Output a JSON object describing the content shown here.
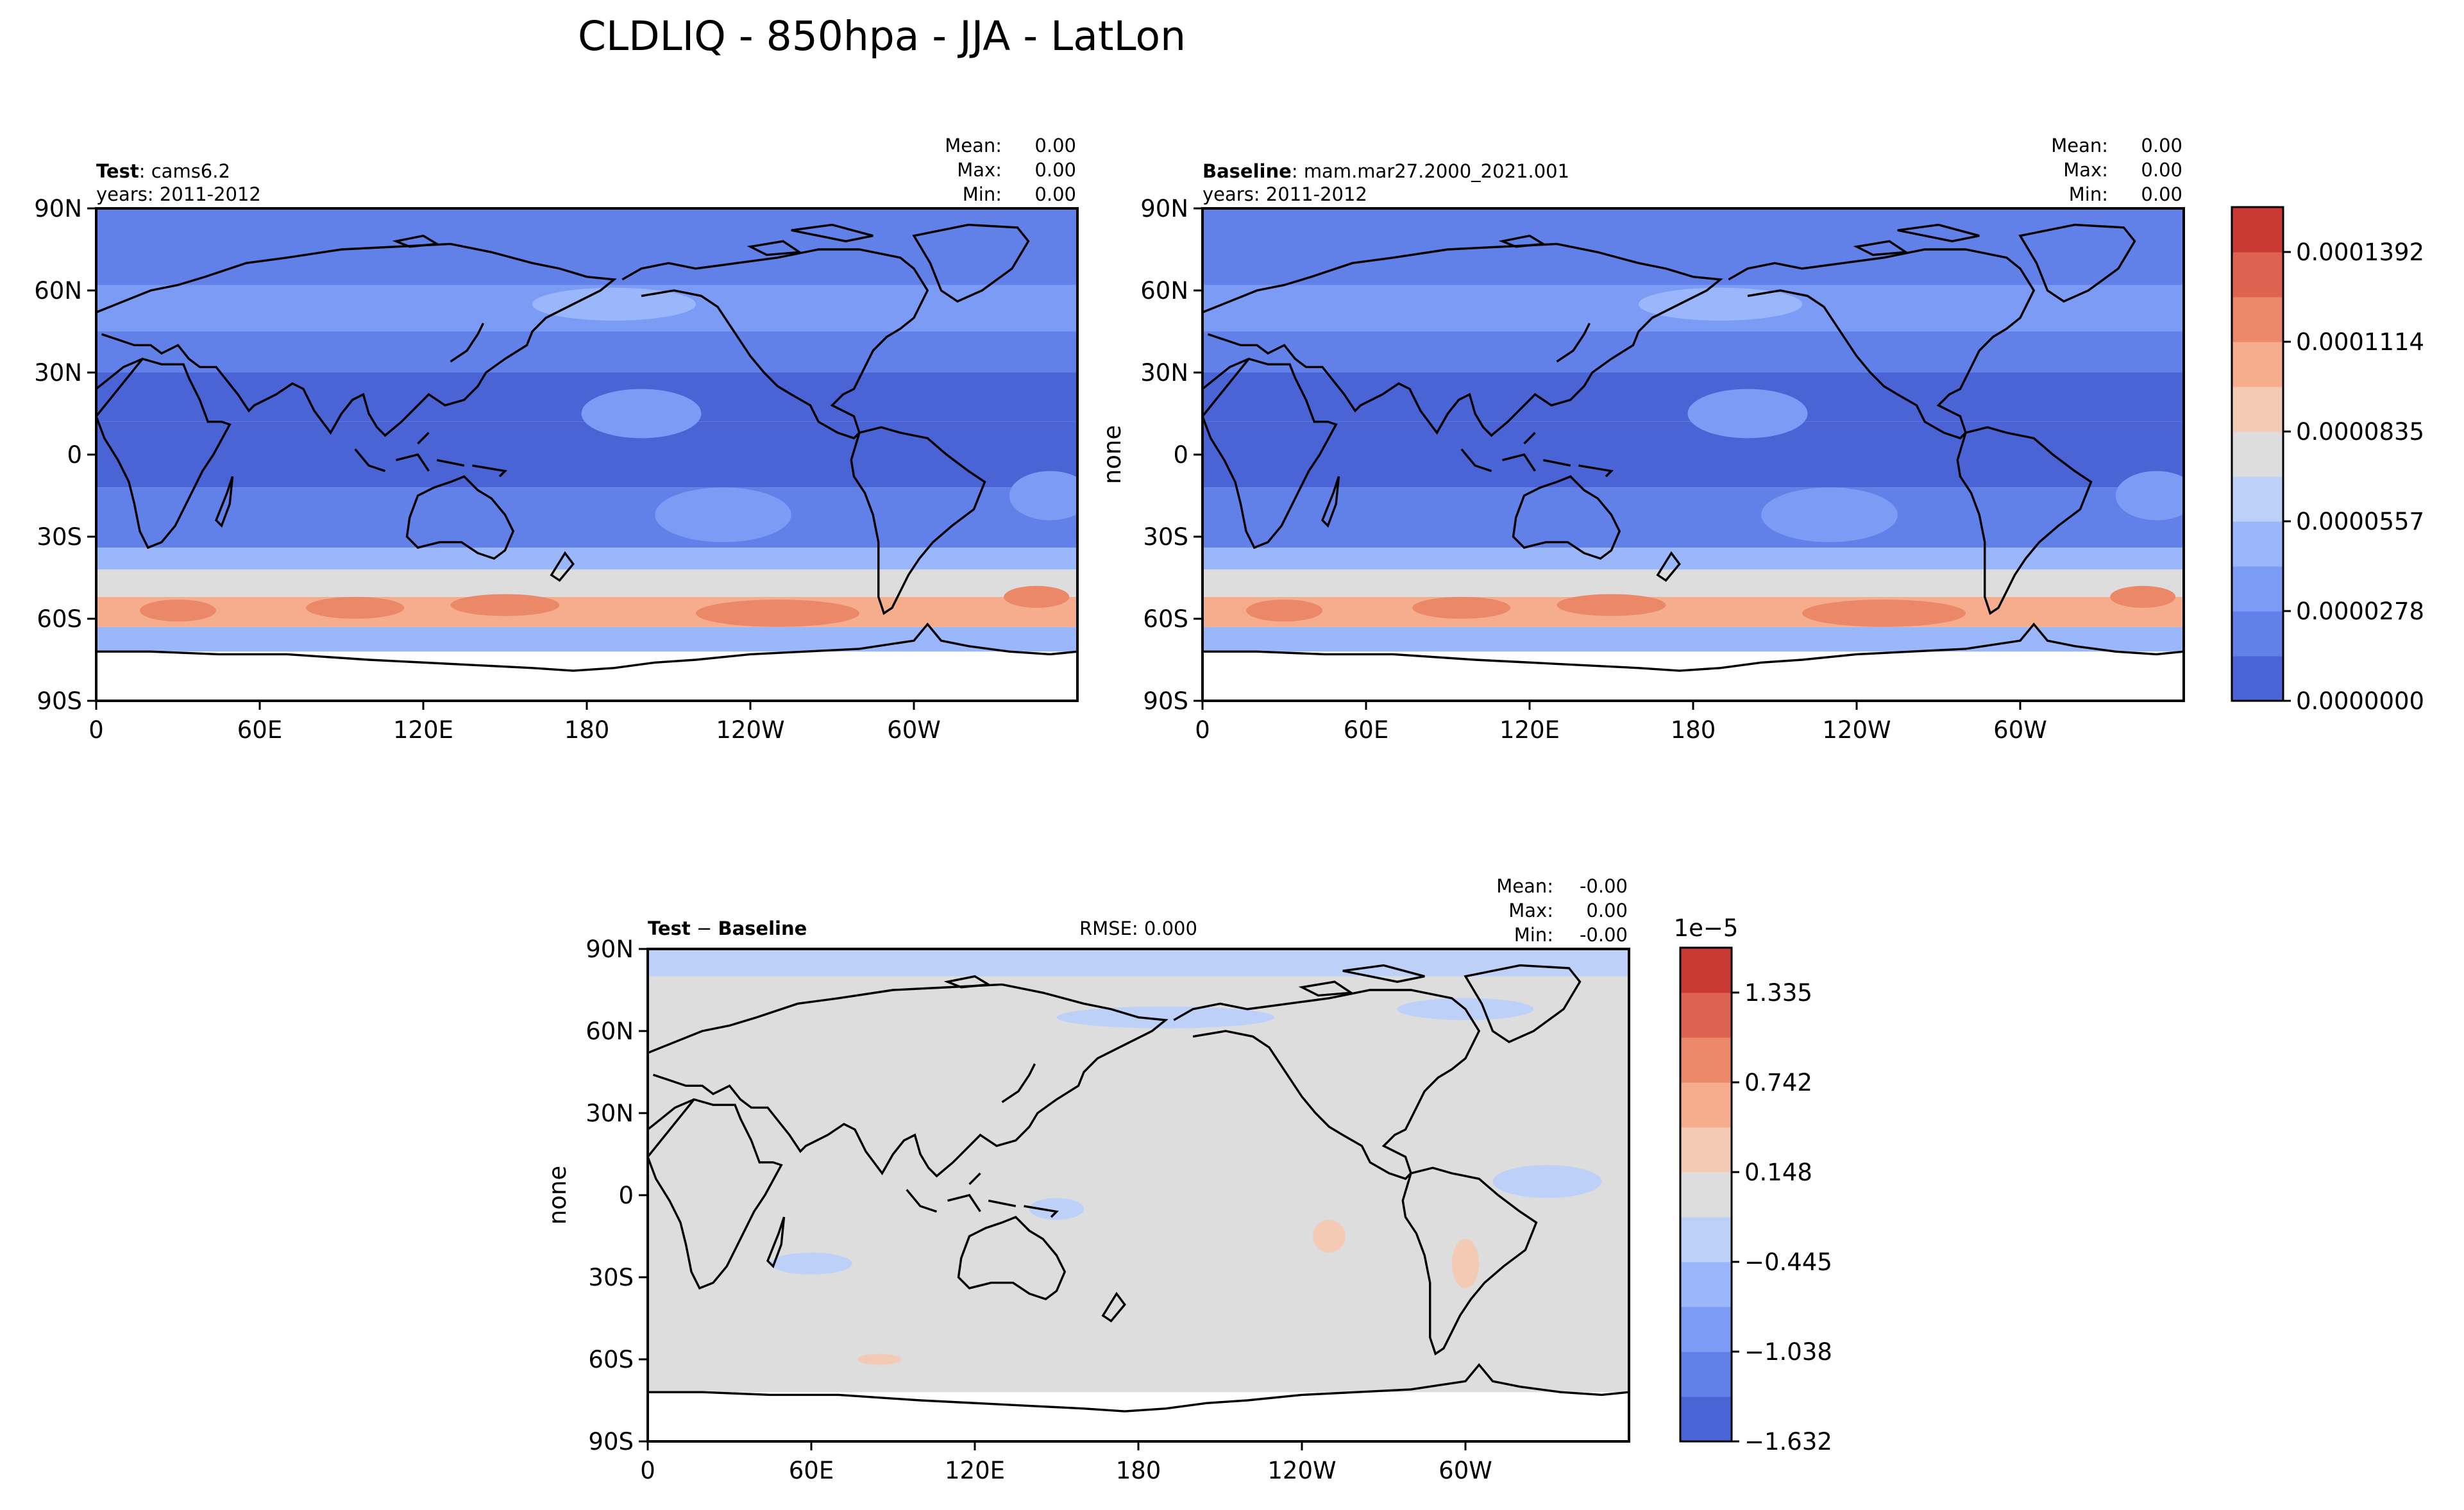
{
  "figure": {
    "title": "CLDLIQ - 850hpa - JJA - LatLon"
  },
  "chart_data": [
    {
      "type": "heatmap",
      "id": "test",
      "label_bold": "Test",
      "label_sep": ": ",
      "label_rest": "cams6.2",
      "years": "years: 2011-2012",
      "stats": [
        {
          "k": "Mean:",
          "v": "0.00"
        },
        {
          "k": "Max:",
          "v": "0.00"
        },
        {
          "k": "Min:",
          "v": "0.00"
        }
      ],
      "ylabel": "",
      "xticks": [
        "0",
        "60E",
        "120E",
        "180",
        "120W",
        "60W"
      ],
      "yticks": [
        "90N",
        "60N",
        "30N",
        "0",
        "30S",
        "60S",
        "90S"
      ],
      "bands": [
        {
          "lat": [
            -90,
            -72
          ],
          "level": -1
        },
        {
          "lat": [
            -72,
            -63
          ],
          "level": 3
        },
        {
          "lat": [
            -63,
            -52
          ],
          "level": 7
        },
        {
          "lat": [
            -52,
            -42
          ],
          "level": 5
        },
        {
          "lat": [
            -42,
            -34
          ],
          "level": 3
        },
        {
          "lat": [
            -34,
            -12
          ],
          "level": 1
        },
        {
          "lat": [
            -12,
            12
          ],
          "level": 0
        },
        {
          "lat": [
            12,
            30
          ],
          "level": 0
        },
        {
          "lat": [
            30,
            45
          ],
          "level": 1
        },
        {
          "lat": [
            45,
            62
          ],
          "level": 2
        },
        {
          "lat": [
            62,
            90
          ],
          "level": 1
        }
      ],
      "blobs": [
        {
          "lon": 30,
          "lat": -57,
          "rx": 14,
          "ry": 4,
          "level": 8
        },
        {
          "lon": 95,
          "lat": -56,
          "rx": 18,
          "ry": 4,
          "level": 8
        },
        {
          "lon": 150,
          "lat": -55,
          "rx": 20,
          "ry": 4,
          "level": 8
        },
        {
          "lon": 250,
          "lat": -58,
          "rx": 30,
          "ry": 5,
          "level": 8
        },
        {
          "lon": 345,
          "lat": -52,
          "rx": 12,
          "ry": 4,
          "level": 8
        },
        {
          "lon": 200,
          "lat": 15,
          "rx": 22,
          "ry": 9,
          "level": 2
        },
        {
          "lon": 230,
          "lat": -22,
          "rx": 25,
          "ry": 10,
          "level": 2
        },
        {
          "lon": 350,
          "lat": -15,
          "rx": 15,
          "ry": 9,
          "level": 2
        },
        {
          "lon": 190,
          "lat": 55,
          "rx": 30,
          "ry": 6,
          "level": 3
        }
      ]
    },
    {
      "type": "heatmap",
      "id": "baseline",
      "label_bold": "Baseline",
      "label_sep": ": ",
      "label_rest": "mam.mar27.2000_2021.001",
      "years": "years: 2011-2012",
      "stats": [
        {
          "k": "Mean:",
          "v": "0.00"
        },
        {
          "k": "Max:",
          "v": "0.00"
        },
        {
          "k": "Min:",
          "v": "0.00"
        }
      ],
      "ylabel": "none",
      "xticks": [
        "0",
        "60E",
        "120E",
        "180",
        "120W",
        "60W"
      ],
      "yticks": [
        "90N",
        "60N",
        "30N",
        "0",
        "30S",
        "60S",
        "90S"
      ],
      "colorbar": {
        "ticks": [
          "0.0001392",
          "0.0001114",
          "0.0000835",
          "0.0000557",
          "0.0000278",
          "0.0000000"
        ]
      },
      "bands": [
        {
          "lat": [
            -90,
            -72
          ],
          "level": -1
        },
        {
          "lat": [
            -72,
            -63
          ],
          "level": 3
        },
        {
          "lat": [
            -63,
            -52
          ],
          "level": 7
        },
        {
          "lat": [
            -52,
            -42
          ],
          "level": 5
        },
        {
          "lat": [
            -42,
            -34
          ],
          "level": 3
        },
        {
          "lat": [
            -34,
            -12
          ],
          "level": 1
        },
        {
          "lat": [
            -12,
            12
          ],
          "level": 0
        },
        {
          "lat": [
            12,
            30
          ],
          "level": 0
        },
        {
          "lat": [
            30,
            45
          ],
          "level": 1
        },
        {
          "lat": [
            45,
            62
          ],
          "level": 2
        },
        {
          "lat": [
            62,
            90
          ],
          "level": 1
        }
      ],
      "blobs": [
        {
          "lon": 30,
          "lat": -57,
          "rx": 14,
          "ry": 4,
          "level": 8
        },
        {
          "lon": 95,
          "lat": -56,
          "rx": 18,
          "ry": 4,
          "level": 8
        },
        {
          "lon": 150,
          "lat": -55,
          "rx": 20,
          "ry": 4,
          "level": 8
        },
        {
          "lon": 250,
          "lat": -58,
          "rx": 30,
          "ry": 5,
          "level": 8
        },
        {
          "lon": 345,
          "lat": -52,
          "rx": 12,
          "ry": 4,
          "level": 8
        },
        {
          "lon": 200,
          "lat": 15,
          "rx": 22,
          "ry": 9,
          "level": 2
        },
        {
          "lon": 230,
          "lat": -22,
          "rx": 25,
          "ry": 10,
          "level": 2
        },
        {
          "lon": 350,
          "lat": -15,
          "rx": 15,
          "ry": 9,
          "level": 2
        },
        {
          "lon": 190,
          "lat": 55,
          "rx": 30,
          "ry": 6,
          "level": 3
        }
      ]
    },
    {
      "type": "heatmap",
      "id": "diff",
      "label_bold": "Test",
      "label_sep": " − ",
      "label_rest": "Baseline",
      "label_rest_bold": true,
      "rmse": "RMSE: 0.000",
      "stats": [
        {
          "k": "Mean:",
          "v": "-0.00"
        },
        {
          "k": "Max:",
          "v": "0.00"
        },
        {
          "k": "Min:",
          "v": "-0.00"
        }
      ],
      "ylabel": "none",
      "xticks": [
        "0",
        "60E",
        "120E",
        "180",
        "120W",
        "60W"
      ],
      "yticks": [
        "90N",
        "60N",
        "30N",
        "0",
        "30S",
        "60S",
        "90S"
      ],
      "colorbar": {
        "exponent": "1e−5",
        "ticks": [
          "1.335",
          "0.742",
          "0.148",
          "−0.445",
          "−1.038",
          "−1.632"
        ]
      },
      "bands": [
        {
          "lat": [
            -90,
            -72
          ],
          "level": -1
        },
        {
          "lat": [
            -72,
            80
          ],
          "level": 5
        },
        {
          "lat": [
            80,
            90
          ],
          "level": 4
        }
      ],
      "blobs": [
        {
          "lon": 190,
          "lat": 65,
          "rx": 40,
          "ry": 4,
          "level": 4
        },
        {
          "lon": 300,
          "lat": 68,
          "rx": 25,
          "ry": 4,
          "level": 4
        },
        {
          "lon": 330,
          "lat": 5,
          "rx": 20,
          "ry": 6,
          "level": 4
        },
        {
          "lon": 60,
          "lat": -25,
          "rx": 15,
          "ry": 4,
          "level": 4
        },
        {
          "lon": 150,
          "lat": -5,
          "rx": 10,
          "ry": 4,
          "level": 4
        },
        {
          "lon": 300,
          "lat": -25,
          "rx": 5,
          "ry": 9,
          "level": 6
        },
        {
          "lon": 250,
          "lat": -15,
          "rx": 6,
          "ry": 6,
          "level": 6
        },
        {
          "lon": 85,
          "lat": -60,
          "rx": 8,
          "ry": 2,
          "level": 6
        }
      ]
    }
  ]
}
